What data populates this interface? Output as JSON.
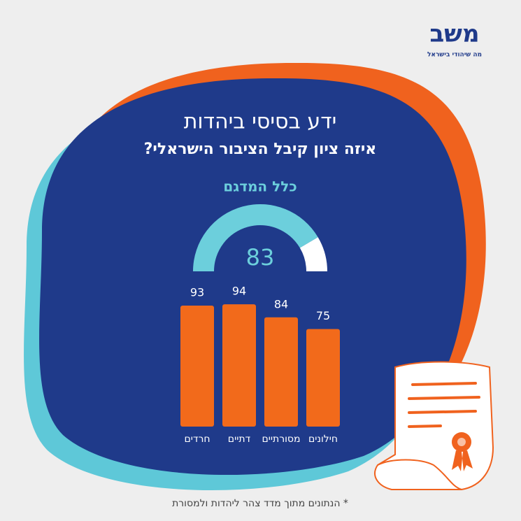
{
  "logo": {
    "name": "משב",
    "tagline": "מה שיהודי בישראל"
  },
  "header": {
    "title": "ידע בסיסי ביהדות",
    "subtitle": "איזה ציון קיבל הציבור הישראלי?"
  },
  "chart_data": [
    {
      "type": "gauge",
      "title": "כלל המדגם",
      "value": 83,
      "ylim": [
        0,
        100
      ],
      "color": "#6ccfdc",
      "track_color": "#ffffff"
    },
    {
      "type": "bar",
      "categories": [
        "חרדים",
        "דתיים",
        "מסורתיים",
        "חילונים"
      ],
      "values": [
        93,
        94,
        84,
        75
      ],
      "color": "#f26a1b",
      "ylim": [
        0,
        100
      ]
    }
  ],
  "footnote": "* הנתונים מתוך מדד צהר ליהדות ולמסורת"
}
